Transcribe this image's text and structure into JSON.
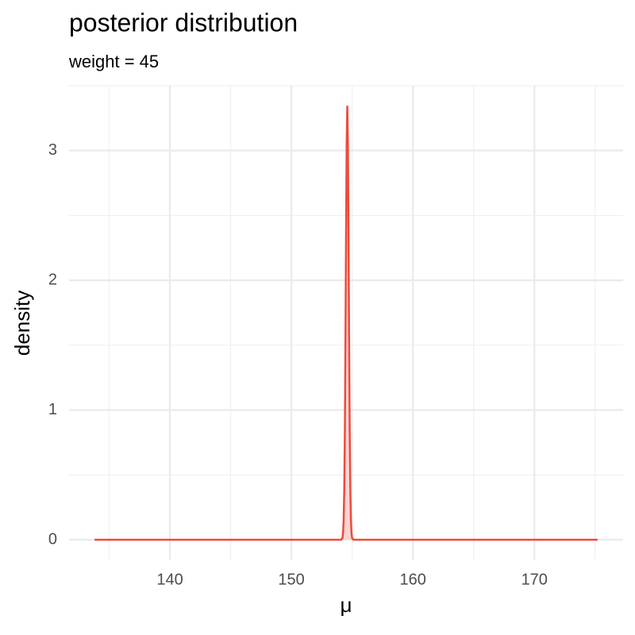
{
  "chart_data": {
    "type": "area",
    "title": "posterior distribution",
    "subtitle": "weight = 45",
    "x_label": "μ",
    "y_label": "density",
    "x": [
      133.8,
      154.1,
      154.15,
      154.2,
      154.25,
      154.3,
      154.35,
      154.4,
      154.45,
      154.5,
      154.55,
      154.6,
      154.65,
      154.7,
      154.75,
      154.8,
      154.85,
      154.9,
      154.95,
      155.0,
      155.05,
      155.1,
      175.2
    ],
    "series": [
      {
        "name": "density",
        "color": "#ee4b3b",
        "fill": "#f7d6d6",
        "values": [
          0,
          0,
          0.01,
          0.01,
          0.05,
          0.15,
          0.38,
          0.83,
          1.53,
          2.36,
          3.06,
          3.34,
          3.06,
          2.36,
          1.53,
          0.83,
          0.38,
          0.15,
          0.05,
          0.01,
          0.01,
          0,
          0
        ]
      }
    ],
    "xlim": [
      131.7,
      177.3
    ],
    "ylim": [
      -0.153,
      3.5
    ],
    "xticks": [
      140,
      150,
      160,
      170
    ],
    "yticks": [
      0,
      1,
      2,
      3
    ],
    "x_minor_ticks": [
      135,
      145,
      155,
      165,
      175
    ],
    "y_minor_ticks": [
      0.5,
      1.5,
      2.5,
      3.5
    ],
    "grid": true
  }
}
